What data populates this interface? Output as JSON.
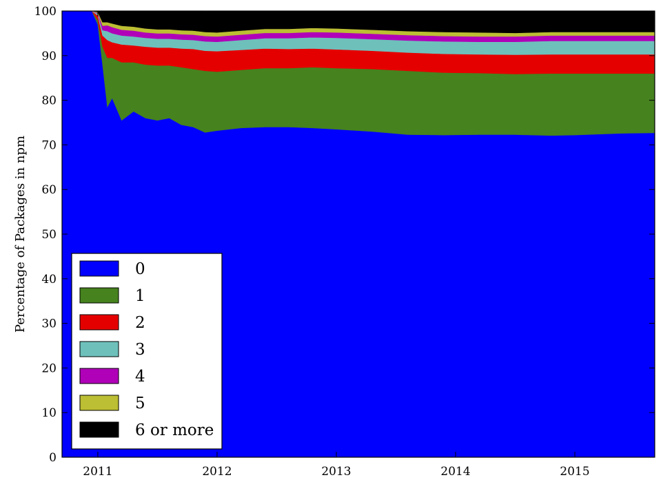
{
  "chart_data": {
    "type": "area",
    "stacked": true,
    "title": "",
    "xlabel": "",
    "ylabel": "Percentage of Packages in npm",
    "xlim": [
      2010.7,
      2015.67
    ],
    "ylim": [
      0,
      100
    ],
    "xticks": [
      2011,
      2012,
      2013,
      2014,
      2015
    ],
    "xtick_labels": [
      "2011",
      "2012",
      "2013",
      "2014",
      "2015"
    ],
    "yticks": [
      0,
      10,
      20,
      30,
      40,
      50,
      60,
      70,
      80,
      90,
      100
    ],
    "ytick_labels": [
      "0",
      "10",
      "20",
      "30",
      "40",
      "50",
      "60",
      "70",
      "80",
      "90",
      "100"
    ],
    "grid": false,
    "legend_position": "lower-left",
    "x": [
      2010.7,
      2010.95,
      2011.0,
      2011.04,
      2011.08,
      2011.12,
      2011.2,
      2011.3,
      2011.4,
      2011.5,
      2011.6,
      2011.7,
      2011.8,
      2011.9,
      2012.0,
      2012.2,
      2012.4,
      2012.6,
      2012.8,
      2013.0,
      2013.3,
      2013.6,
      2013.9,
      2014.2,
      2014.5,
      2014.8,
      2015.0,
      2015.2,
      2015.4,
      2015.67
    ],
    "series": [
      {
        "name": "0",
        "color": "#0000ff",
        "values": [
          100.0,
          100.0,
          97.0,
          88.0,
          78.5,
          80.5,
          75.5,
          77.5,
          76.0,
          75.5,
          76.0,
          74.5,
          74.0,
          72.8,
          73.2,
          73.8,
          74.0,
          74.0,
          73.8,
          73.5,
          73.0,
          72.3,
          72.2,
          72.3,
          72.3,
          72.1,
          72.2,
          72.4,
          72.6,
          72.7
        ]
      },
      {
        "name": "1",
        "color": "#46821e",
        "values": [
          0.0,
          0.0,
          1.0,
          4.0,
          11.0,
          9.0,
          13.0,
          11.0,
          12.0,
          12.3,
          11.8,
          12.9,
          13.0,
          13.8,
          13.2,
          13.0,
          13.2,
          13.2,
          13.6,
          13.7,
          14.0,
          14.3,
          14.0,
          13.8,
          13.6,
          13.9,
          13.8,
          13.6,
          13.4,
          13.3
        ]
      },
      {
        "name": "2",
        "color": "#e50000",
        "values": [
          0.0,
          0.0,
          1.0,
          2.5,
          4.0,
          3.5,
          4.0,
          3.8,
          4.0,
          4.0,
          4.0,
          4.2,
          4.5,
          4.5,
          4.6,
          4.5,
          4.4,
          4.3,
          4.2,
          4.2,
          4.1,
          4.1,
          4.2,
          4.2,
          4.3,
          4.3,
          4.3,
          4.3,
          4.3,
          4.3
        ]
      },
      {
        "name": "3",
        "color": "#6ec0bb",
        "values": [
          0.0,
          0.0,
          0.4,
          1.2,
          2.0,
          2.0,
          2.0,
          2.0,
          2.0,
          2.0,
          2.0,
          2.0,
          2.0,
          2.1,
          2.1,
          2.2,
          2.3,
          2.4,
          2.5,
          2.6,
          2.6,
          2.7,
          2.8,
          2.8,
          2.9,
          3.0,
          3.0,
          3.0,
          3.0,
          3.0
        ]
      },
      {
        "name": "4",
        "color": "#b000b8",
        "values": [
          0.0,
          0.0,
          0.2,
          1.0,
          1.3,
          1.4,
          1.3,
          1.3,
          1.2,
          1.2,
          1.2,
          1.2,
          1.2,
          1.2,
          1.2,
          1.2,
          1.2,
          1.2,
          1.2,
          1.2,
          1.2,
          1.2,
          1.2,
          1.2,
          1.2,
          1.2,
          1.2,
          1.2,
          1.2,
          1.2
        ]
      },
      {
        "name": "5",
        "color": "#bcbe33",
        "values": [
          0.0,
          0.0,
          0.2,
          0.8,
          0.7,
          0.8,
          0.9,
          0.9,
          0.9,
          0.9,
          0.9,
          0.9,
          0.9,
          0.9,
          0.9,
          0.9,
          0.9,
          0.9,
          0.9,
          0.9,
          0.9,
          0.9,
          0.9,
          0.9,
          0.8,
          0.8,
          0.8,
          0.8,
          0.8,
          0.8
        ]
      },
      {
        "name": "6 or more",
        "color": "#000000",
        "values": [
          0.0,
          0.0,
          0.2,
          2.5,
          2.5,
          2.8,
          3.3,
          3.5,
          3.9,
          4.1,
          4.1,
          4.3,
          4.4,
          4.6,
          4.8,
          4.4,
          4.0,
          4.0,
          3.8,
          3.9,
          4.2,
          4.5,
          4.7,
          4.8,
          4.9,
          4.7,
          4.7,
          4.7,
          4.7,
          4.7
        ]
      }
    ]
  }
}
